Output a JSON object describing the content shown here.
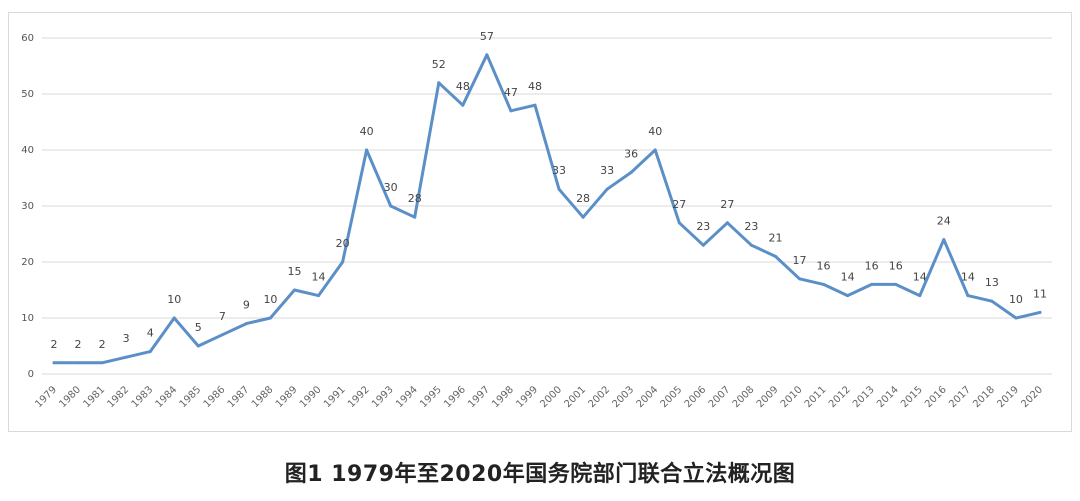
{
  "caption": "图1 1979年至2020年国务院部门联合立法概况图",
  "chart_data": {
    "type": "line",
    "title": "",
    "xlabel": "",
    "ylabel": "",
    "ylim": [
      0,
      60
    ],
    "yticks": [
      0,
      10,
      20,
      30,
      40,
      50,
      60
    ],
    "grid": true,
    "line_color": "#5b8fc7",
    "categories": [
      "1979",
      "1980",
      "1981",
      "1982",
      "1983",
      "1984",
      "1985",
      "1986",
      "1987",
      "1988",
      "1989",
      "1990",
      "1991",
      "1992",
      "1993",
      "1994",
      "1995",
      "1996",
      "1997",
      "1998",
      "1999",
      "2000",
      "2001",
      "2002",
      "2003",
      "2004",
      "2005",
      "2006",
      "2007",
      "2008",
      "2009",
      "2010",
      "2011",
      "2012",
      "2013",
      "2014",
      "2015",
      "2016",
      "2017",
      "2018",
      "2019",
      "2020"
    ],
    "values": [
      2,
      2,
      2,
      3,
      4,
      10,
      5,
      7,
      9,
      10,
      15,
      14,
      20,
      40,
      30,
      28,
      52,
      48,
      57,
      47,
      48,
      33,
      28,
      33,
      36,
      40,
      27,
      23,
      27,
      23,
      21,
      17,
      16,
      14,
      16,
      16,
      14,
      24,
      14,
      13,
      10,
      11
    ]
  }
}
